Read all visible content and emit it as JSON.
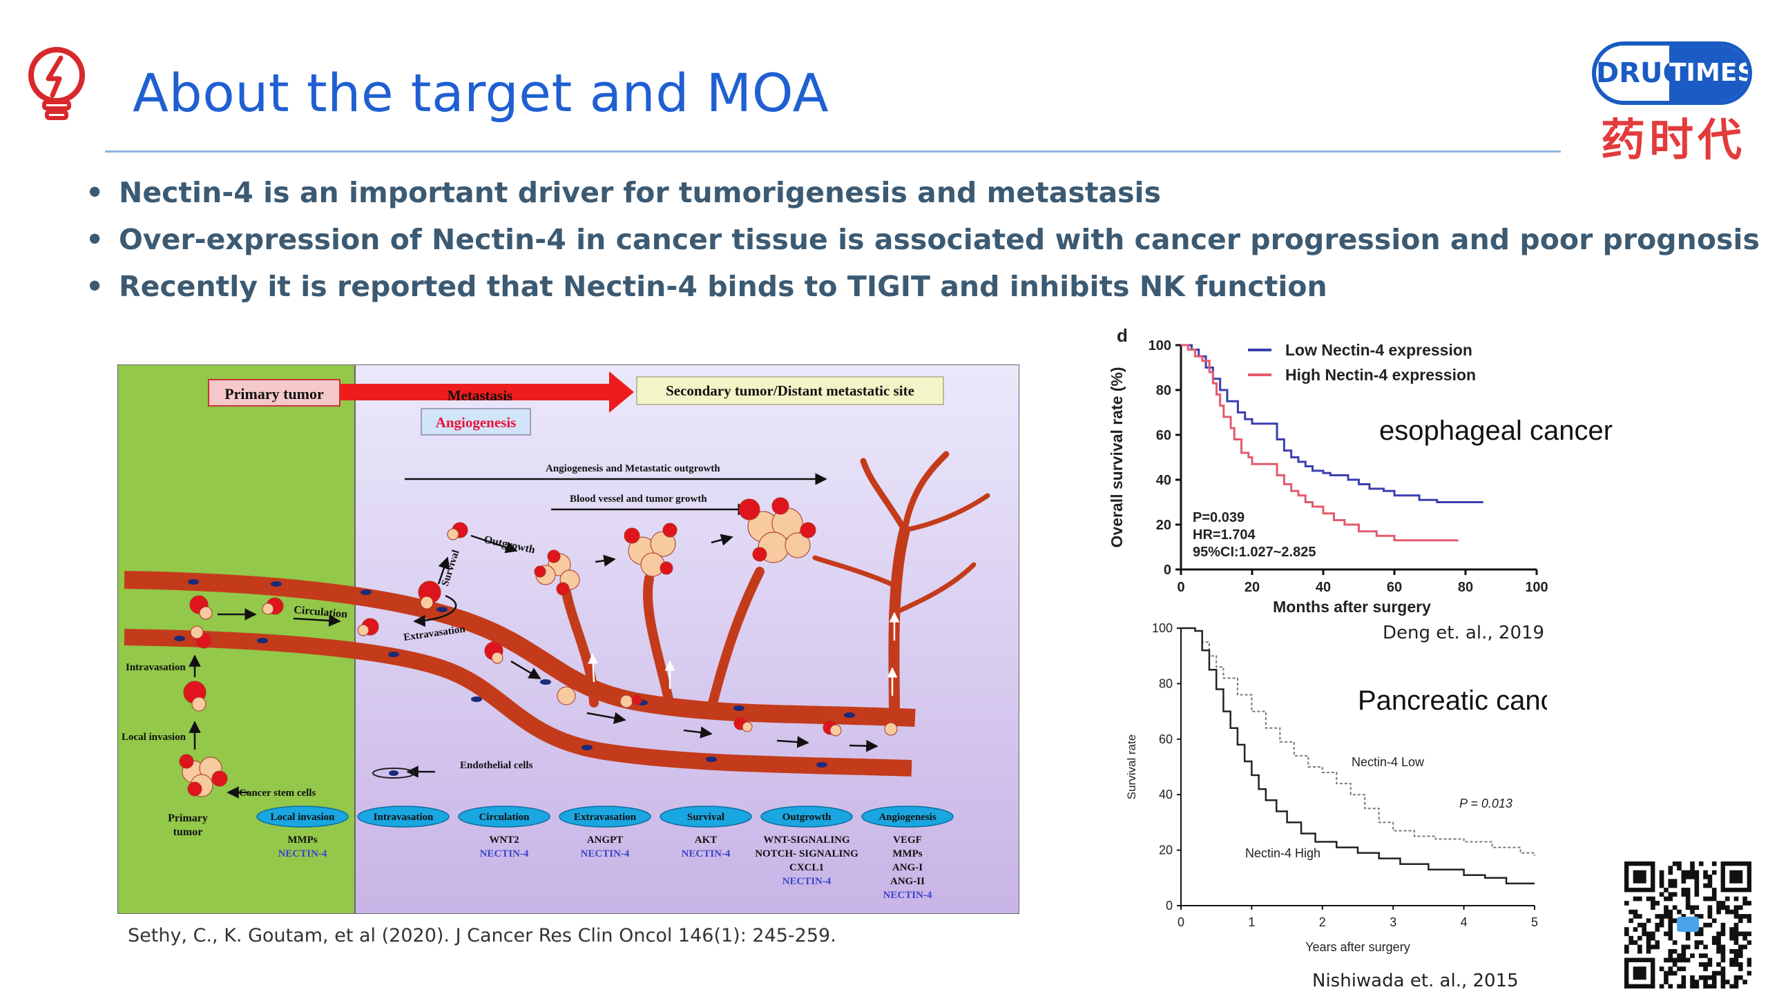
{
  "slide": {
    "title": "About the target and MOA",
    "bullets": [
      "Nectin-4 is an important driver for tumorigenesis and metastasis",
      "Over-expression of Nectin-4 in cancer tissue is associated with cancer progression and poor prognosis",
      "Recently it is reported that Nectin-4 binds to TIGIT and inhibits NK function"
    ],
    "citation": "Sethy, C., K. Goutam, et al (2020). J Cancer Res Clin Oncol 146(1): 245-259.",
    "colors": {
      "title": "#1f5fd1",
      "bullet_text": "#3c5a72",
      "logo_blue": "#1a5bc4",
      "logo_red": "#e33b3b"
    }
  },
  "logo": {
    "drug": "DRUG",
    "times": "TIMES",
    "chinese": "药时代"
  },
  "diagram": {
    "primary_tumor": "Primary tumor",
    "metastasis": "Metastasis",
    "angiogenesis": "Angiogenesis",
    "secondary": "Secondary tumor/Distant metastatic site",
    "arrow1": "Angiogenesis and Metastatic outgrowth",
    "arrow2": "Blood vessel and tumor growth",
    "outgrowth": "Outgrowth",
    "survival": "Survival",
    "circulation": "Circulation",
    "extravasation": "Extravasation",
    "intravasation": "Intravasation",
    "local_invasion": "Local invasion",
    "cancer_stem_cells": "Cancer stem cells",
    "endothelial": "Endothelial cells",
    "primary_tumor_label": [
      "Primary",
      "tumor"
    ],
    "stages": [
      {
        "name": "Local invasion",
        "genes": [
          "MMPs"
        ],
        "nectin": "NECTIN-4"
      },
      {
        "name": "Intravasation",
        "genes": [],
        "nectin": ""
      },
      {
        "name": "Circulation",
        "genes": [
          "WNT2"
        ],
        "nectin": "NECTIN-4"
      },
      {
        "name": "Extravasation",
        "genes": [
          "ANGPT"
        ],
        "nectin": "NECTIN-4"
      },
      {
        "name": "Survival",
        "genes": [
          "AKT"
        ],
        "nectin": "NECTIN-4"
      },
      {
        "name": "Outgrowth",
        "genes": [
          "WNT-SIGNALING",
          "NOTCH- SIGNALING",
          "CXCL1"
        ],
        "nectin": "NECTIN-4"
      },
      {
        "name": "Angiogenesis",
        "genes": [
          "VEGF",
          "MMPs",
          "ANG-I",
          "ANG-II"
        ],
        "nectin": "NECTIN-4"
      }
    ]
  },
  "chart_data": [
    {
      "type": "line",
      "panel_letter": "d",
      "label": "esophageal cancer",
      "reference": "Deng et. al., 2019",
      "xlabel": "Months after surgery",
      "ylabel": "Overall survival rate (%)",
      "xlim": [
        0,
        100
      ],
      "ylim": [
        0,
        100
      ],
      "xticks": [
        0,
        20,
        40,
        60,
        80,
        100
      ],
      "yticks": [
        0,
        20,
        40,
        60,
        80,
        100
      ],
      "legend_position": "top",
      "annotations": [
        "P=0.039",
        "HR=1.704",
        "95%CI:1.027~2.825"
      ],
      "series": [
        {
          "name": "Low  Nectin-4 expression",
          "color": "#3b3fb0",
          "x": [
            0,
            3,
            4,
            5,
            6,
            7,
            8,
            9,
            10,
            11,
            12,
            13,
            14,
            16,
            18,
            20,
            25,
            27,
            29,
            31,
            33,
            35,
            37,
            40,
            42,
            45,
            47,
            50,
            53,
            57,
            60,
            63,
            67,
            72,
            78,
            85
          ],
          "y": [
            100,
            98,
            98,
            95,
            95,
            90,
            90,
            85,
            85,
            80,
            80,
            75,
            75,
            70,
            67,
            65,
            65,
            58,
            53,
            50,
            48,
            46,
            44,
            43,
            42,
            42,
            40,
            38,
            36,
            35,
            33,
            33,
            31,
            30,
            30,
            30
          ]
        },
        {
          "name": "High  Nectin-4 expression",
          "color": "#e35a6e",
          "x": [
            0,
            2,
            3,
            4,
            5,
            6,
            8,
            9,
            10,
            11,
            12,
            14,
            15,
            17,
            19,
            20,
            25,
            27,
            29,
            31,
            33,
            35,
            37,
            40,
            43,
            46,
            50,
            55,
            60,
            70,
            78
          ],
          "y": [
            100,
            98,
            98,
            95,
            95,
            93,
            88,
            83,
            78,
            73,
            68,
            63,
            58,
            52,
            50,
            47,
            47,
            42,
            38,
            35,
            33,
            30,
            28,
            25,
            22,
            20,
            17,
            15,
            13,
            13,
            13
          ]
        }
      ]
    },
    {
      "type": "line",
      "label": "Pancreatic cancer",
      "reference": "Nishiwada et. al., 2015",
      "xlabel": "Years after surgery",
      "ylabel": "Survival rate",
      "xlim": [
        0,
        5
      ],
      "ylim": [
        0,
        100
      ],
      "xticks": [
        0,
        1,
        2,
        3,
        4,
        5
      ],
      "yticks": [
        0,
        20,
        40,
        60,
        80,
        100
      ],
      "annotations": [
        "P = 0.013"
      ],
      "series": [
        {
          "name": "Nectin-4 Low",
          "dashed": true,
          "color": "#777777",
          "x": [
            0,
            0.2,
            0.3,
            0.4,
            0.5,
            0.6,
            0.8,
            1.0,
            1.2,
            1.4,
            1.6,
            1.8,
            2.0,
            2.2,
            2.4,
            2.6,
            2.8,
            3.0,
            3.3,
            3.6,
            4.0,
            4.4,
            4.8,
            5.0
          ],
          "y": [
            100,
            99,
            95,
            90,
            86,
            82,
            76,
            70,
            64,
            59,
            54,
            50,
            48,
            44,
            40,
            35,
            30,
            27,
            25,
            24,
            23,
            21,
            19,
            18
          ]
        },
        {
          "name": "Nectin-4 High",
          "dashed": false,
          "color": "#222222",
          "x": [
            0,
            0.2,
            0.3,
            0.4,
            0.5,
            0.6,
            0.7,
            0.8,
            0.9,
            1.0,
            1.1,
            1.2,
            1.35,
            1.5,
            1.7,
            1.9,
            2.2,
            2.5,
            2.8,
            3.1,
            3.5,
            4.0,
            4.3,
            4.6,
            5.0
          ],
          "y": [
            100,
            99,
            92,
            85,
            78,
            70,
            64,
            58,
            52,
            47,
            42,
            38,
            34,
            30,
            26,
            23,
            21,
            19,
            17,
            15,
            13,
            11,
            10,
            8,
            8
          ]
        }
      ]
    }
  ]
}
